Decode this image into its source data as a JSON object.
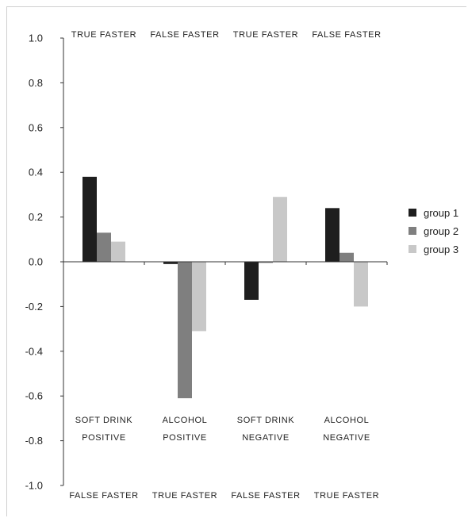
{
  "chart_data": {
    "type": "bar",
    "categories": [
      "SOFT DRINK POSITIVE",
      "ALCOHOL POSITIVE",
      "SOFT DRINK NEGATIVE",
      "ALCOHOL NEGATIVE"
    ],
    "category_label_lines": [
      [
        "SOFT DRINK",
        "POSITIVE"
      ],
      [
        "ALCOHOL",
        "POSITIVE"
      ],
      [
        "SOFT DRINK",
        "NEGATIVE"
      ],
      [
        "ALCOHOL",
        "NEGATIVE"
      ]
    ],
    "top_labels": [
      "TRUE FASTER",
      "FALSE FASTER",
      "TRUE FASTER",
      "FALSE FASTER"
    ],
    "bottom_labels": [
      "FALSE FASTER",
      "TRUE FASTER",
      "FALSE FASTER",
      "TRUE FASTER"
    ],
    "series": [
      {
        "name": "group 1",
        "color": "#1e1e1e",
        "values": [
          0.38,
          -0.01,
          -0.17,
          0.24
        ]
      },
      {
        "name": "group 2",
        "color": "#7f7f7f",
        "values": [
          0.13,
          -0.61,
          -0.005,
          0.04
        ]
      },
      {
        "name": "group 3",
        "color": "#c8c8c8",
        "values": [
          0.09,
          -0.31,
          0.29,
          -0.2
        ]
      }
    ],
    "ylim": [
      -1.0,
      1.0
    ],
    "yticks": [
      "1.0",
      "0.8",
      "0.6",
      "0.4",
      "0.2",
      "0.0",
      "-0.2",
      "-0.4",
      "-0.6",
      "-0.8",
      "-1.0"
    ],
    "ytick_values": [
      1.0,
      0.8,
      0.6,
      0.4,
      0.2,
      0.0,
      -0.2,
      -0.4,
      -0.6,
      -0.8,
      -1.0
    ],
    "grid": false,
    "legend_position": "right"
  }
}
